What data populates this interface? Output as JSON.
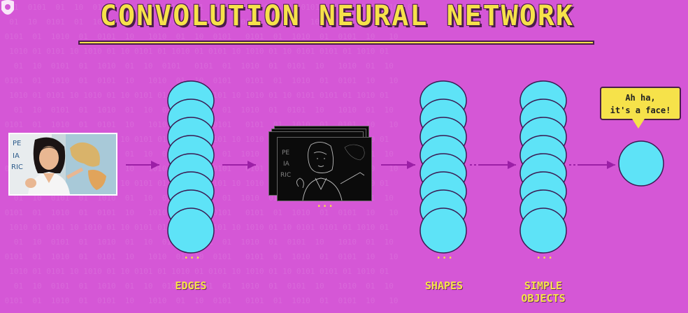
{
  "title": "CONVOLUTION NEURAL NETWORK",
  "labels": {
    "edges": "EDGES",
    "shapes": "SHAPES",
    "simple_objects_line1": "SIMPLE",
    "simple_objects_line2": "OBJECTS"
  },
  "bubble": {
    "line1": "Ah ha,",
    "line2": "it's a face!"
  },
  "dots": "...",
  "colors": {
    "background": "#d557d6",
    "neuron": "#5ee3f7",
    "accent": "#f6e24a",
    "arrow": "#9b1fa6"
  }
}
